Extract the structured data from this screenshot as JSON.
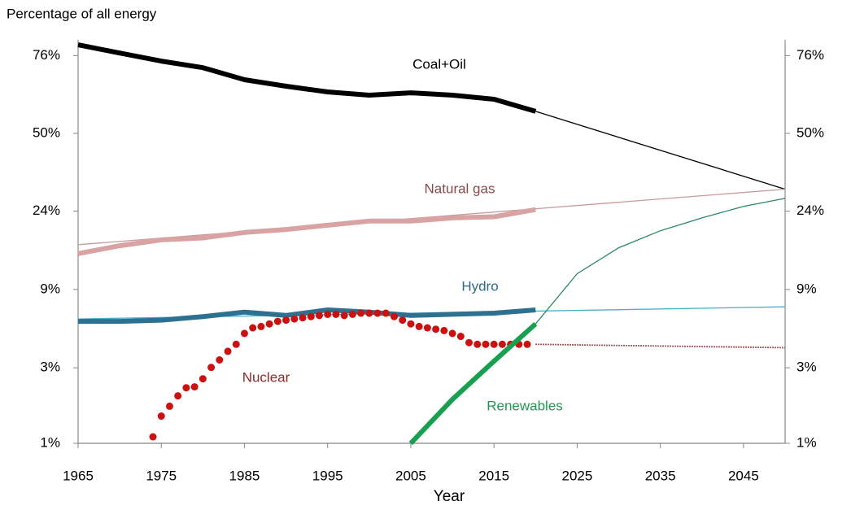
{
  "chart_data": {
    "type": "line",
    "yscale": "logit",
    "ylabel": "Percentage of all energy",
    "xlabel": "Year",
    "xlim": [
      1965,
      2050
    ],
    "xticks": [
      1965,
      1975,
      1985,
      1995,
      2005,
      2015,
      2025,
      2035,
      2045
    ],
    "ylim": [
      1,
      80
    ],
    "yticks": [
      {
        "value": 1,
        "label": "1%"
      },
      {
        "value": 3,
        "label": "3%"
      },
      {
        "value": 9,
        "label": "9%"
      },
      {
        "value": 24,
        "label": "24%"
      },
      {
        "value": 50,
        "label": "50%"
      },
      {
        "value": 76,
        "label": "76%"
      }
    ],
    "series": [
      {
        "name": "Coal+Oil",
        "color": "#000000",
        "label_color": "#000000",
        "projection_color": "#000000",
        "x": [
          1965,
          1970,
          1975,
          1980,
          1985,
          1990,
          1995,
          2000,
          2005,
          2010,
          2015,
          2020
        ],
        "values": [
          78.8,
          76.7,
          74.5,
          72.6,
          68.9,
          66.8,
          64.9,
          63.8,
          64.6,
          63.8,
          62.4,
          58.1
        ],
        "projection_x": [
          2020,
          2050
        ],
        "projection_values": [
          58.1,
          30.4
        ]
      },
      {
        "name": "Natural gas",
        "color": "#d9a3a3",
        "label_color": "#8b4a4a",
        "projection_color": "#c89a9a",
        "x": [
          1965,
          1970,
          1975,
          1980,
          1985,
          1990,
          1995,
          2000,
          2005,
          2010,
          2015,
          2020
        ],
        "values": [
          14.4,
          15.9,
          17.1,
          17.5,
          18.7,
          19.4,
          20.4,
          21.4,
          21.4,
          22.2,
          22.5,
          24.4
        ],
        "projection_x": [
          1965,
          2050
        ],
        "projection_values": [
          16.1,
          30.4
        ]
      },
      {
        "name": "Hydro",
        "color": "#2e7090",
        "label_color": "#2e6a8a",
        "projection_color": "#4aaecc",
        "x": [
          1965,
          1970,
          1975,
          1980,
          1985,
          1990,
          1995,
          2000,
          2005,
          2010,
          2015,
          2020
        ],
        "values": [
          5.8,
          5.8,
          5.9,
          6.2,
          6.6,
          6.3,
          6.8,
          6.6,
          6.3,
          6.4,
          6.5,
          6.8
        ],
        "projection_x": [
          1965,
          2050
        ],
        "projection_values": [
          6.0,
          7.1
        ]
      },
      {
        "name": "Nuclear",
        "color": "#cc1111",
        "label_color": "#8b2a2a",
        "projection_color": "#8b2020",
        "style": "dots",
        "x": [
          1974,
          1975,
          1976,
          1977,
          1978,
          1979,
          1980,
          1981,
          1982,
          1983,
          1984,
          1985,
          1986,
          1987,
          1988,
          1989,
          1990,
          1991,
          1992,
          1993,
          1994,
          1995,
          1996,
          1997,
          1998,
          1999,
          2000,
          2001,
          2002,
          2003,
          2004,
          2005,
          2006,
          2007,
          2008,
          2009,
          2010,
          2011,
          2012,
          2013,
          2014,
          2015,
          2016,
          2017,
          2018,
          2019
        ],
        "values": [
          1.1,
          1.49,
          1.72,
          2.0,
          2.25,
          2.28,
          2.56,
          3.02,
          3.36,
          3.8,
          4.2,
          4.9,
          5.3,
          5.4,
          5.6,
          5.8,
          5.9,
          6.0,
          6.1,
          6.2,
          6.3,
          6.4,
          6.4,
          6.3,
          6.4,
          6.5,
          6.5,
          6.5,
          6.5,
          6.2,
          5.9,
          5.6,
          5.4,
          5.3,
          5.2,
          5.1,
          4.9,
          4.7,
          4.3,
          4.2,
          4.2,
          4.2,
          4.2,
          4.2,
          4.2,
          4.2
        ],
        "projection_x": [
          2020,
          2050
        ],
        "projection_values": [
          4.2,
          4.0
        ]
      },
      {
        "name": "Renewables",
        "color": "#17a050",
        "label_color": "#1a9a50",
        "projection_color": "#2a8a60",
        "x": [
          2005,
          2010,
          2015,
          2020
        ],
        "values": [
          1.0,
          1.9,
          3.3,
          5.6
        ],
        "projection_x": [
          2020,
          2025,
          2030,
          2035,
          2040,
          2045,
          2050
        ],
        "projection_values": [
          5.6,
          11.1,
          15.5,
          19.1,
          22.2,
          25.3,
          27.6
        ]
      }
    ]
  }
}
